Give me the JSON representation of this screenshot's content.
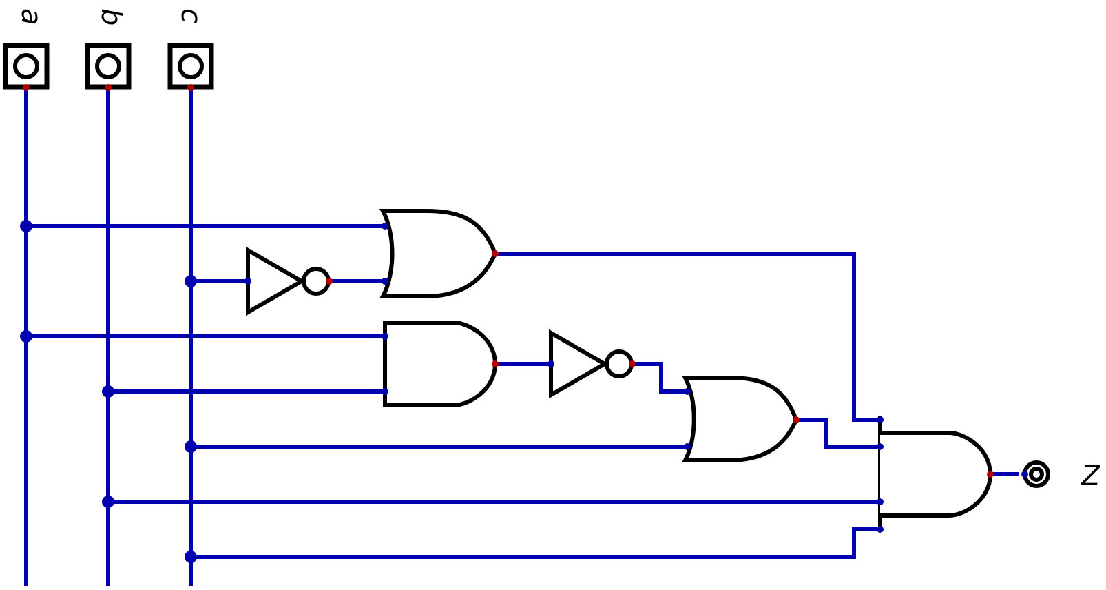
{
  "diagram": {
    "inputs": [
      {
        "id": "a",
        "label": "a"
      },
      {
        "id": "b",
        "label": "b"
      },
      {
        "id": "c",
        "label": "c"
      }
    ],
    "outputs": [
      {
        "id": "z",
        "label": "Z"
      }
    ],
    "gates": [
      {
        "id": "or1",
        "type": "OR",
        "inputs": [
          "a",
          "not1"
        ]
      },
      {
        "id": "not1",
        "type": "NOT",
        "inputs": [
          "c"
        ]
      },
      {
        "id": "and1",
        "type": "AND",
        "inputs": [
          "a",
          "b"
        ]
      },
      {
        "id": "not2",
        "type": "NOT",
        "inputs": [
          "and1"
        ]
      },
      {
        "id": "or2",
        "type": "OR",
        "inputs": [
          "not2",
          "c"
        ]
      },
      {
        "id": "and2",
        "type": "AND",
        "inputs": [
          "or1",
          "or2",
          "b",
          "c"
        ]
      }
    ],
    "output_source": "and2",
    "colors": {
      "wire": "#0000b0",
      "input_pin": "#0000b0",
      "output_pin": "#b00000",
      "gate_stroke": "#000000"
    }
  }
}
